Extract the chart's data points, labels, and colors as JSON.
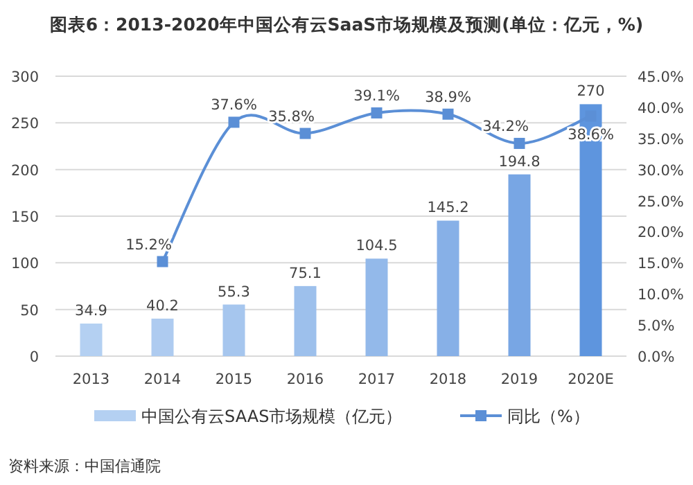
{
  "chart_data": {
    "type": "bar",
    "title": "图表6：2013-2020年中国公有云SaaS市场规模及预测(单位：亿元，%)",
    "categories": [
      "2013",
      "2014",
      "2015",
      "2016",
      "2017",
      "2018",
      "2019",
      "2020E"
    ],
    "series": [
      {
        "name": "中国公有云SAAS市场规模（亿元）",
        "colors": [
          "#b4d0f2",
          "#aecbf0",
          "#a6c6ee",
          "#9dc0ec",
          "#93b9ea",
          "#87b0e7",
          "#78a6e4",
          "#5e95de"
        ],
        "values": [
          34.9,
          40.2,
          55.3,
          75.1,
          104.5,
          145.2,
          194.8,
          270
        ],
        "value_labels": [
          "34.9",
          "40.2",
          "55.3",
          "75.1",
          "104.5",
          "145.2",
          "194.8",
          "270"
        ]
      },
      {
        "name": "同比（%）",
        "type": "line",
        "axis": "y2",
        "color": "#5b8fd6",
        "marker": "square",
        "values": [
          null,
          15.2,
          37.6,
          35.8,
          39.1,
          38.9,
          34.2,
          38.6
        ],
        "value_labels": [
          null,
          "15.2%",
          "37.6%",
          "35.8%",
          "39.1%",
          "38.9%",
          "34.2%",
          "38.6%"
        ]
      }
    ],
    "ylim": [
      0,
      300
    ],
    "yticks": [
      0,
      50,
      100,
      150,
      200,
      250,
      300
    ],
    "y2lim": [
      0,
      45
    ],
    "y2ticks": [
      {
        "value": 0,
        "label": "0.0%"
      },
      {
        "value": 5,
        "label": "5.0%"
      },
      {
        "value": 10,
        "label": "10.0%"
      },
      {
        "value": 15,
        "label": "15.0%"
      },
      {
        "value": 20,
        "label": "20.0%"
      },
      {
        "value": 25,
        "label": "25.0%"
      },
      {
        "value": 30,
        "label": "30.0%"
      },
      {
        "value": 35,
        "label": "35.0%"
      },
      {
        "value": 40,
        "label": "40.0%"
      },
      {
        "value": 45,
        "label": "45.0%"
      }
    ],
    "grid": "y",
    "legend": "bottom",
    "annotations": [
      "资料来源：中国信通院"
    ]
  }
}
